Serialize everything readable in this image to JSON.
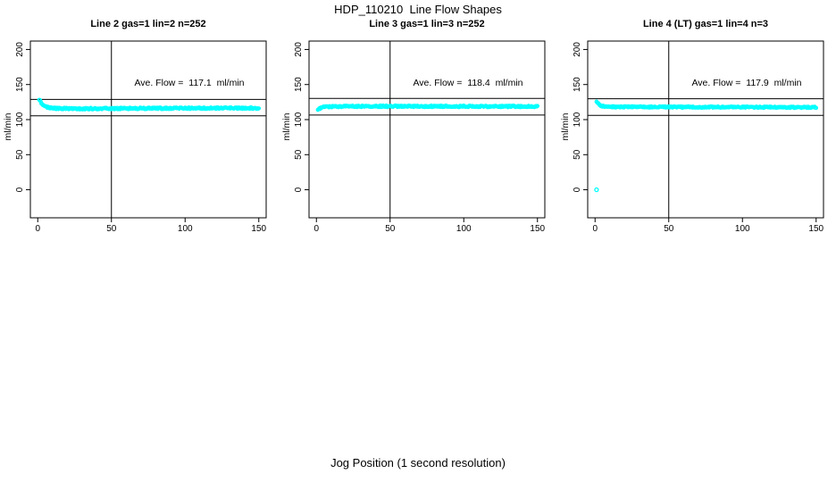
{
  "chart_data": {
    "type": "scatter",
    "title": "HDP_110210  Line Flow Shapes",
    "xlabel": "Jog Position (1 second resolution)",
    "ylabel": "ml/min",
    "xlim": [
      -5,
      155
    ],
    "ylim": [
      -40,
      212
    ],
    "xticks": [
      0,
      50,
      100,
      150
    ],
    "yticks": [
      0,
      50,
      100,
      150,
      200
    ],
    "grid": false,
    "legend": "none",
    "point_color": "#00FFFF",
    "line_color": "#000000",
    "background_color": "#ffffff",
    "panels": [
      {
        "title": "Line 2 gas=1 lin=2 n=252",
        "ave_flow_ml_min": 117.1,
        "annotation": "Ave. Flow =  117.1  ml/min",
        "n_points": 252,
        "vline_x": 50,
        "ref_lines_y": [
          128.8,
          105.4
        ],
        "x_range": [
          1,
          150
        ],
        "band_anchors": [
          [
            1,
            129
          ],
          [
            2,
            125
          ],
          [
            3,
            122
          ],
          [
            4,
            119.8
          ],
          [
            6,
            117.8
          ],
          [
            9,
            116.5
          ],
          [
            15,
            115.8
          ],
          [
            30,
            115.6
          ],
          [
            60,
            115.9
          ],
          [
            100,
            116.3
          ],
          [
            150,
            116.4
          ]
        ],
        "band_spread": 2.2,
        "seed": 1,
        "extra_points": []
      },
      {
        "title": "Line 3 gas=1 lin=3 n=252",
        "ave_flow_ml_min": 118.4,
        "annotation": "Ave. Flow =  118.4  ml/min",
        "n_points": 252,
        "vline_x": 50,
        "ref_lines_y": [
          130.2,
          106.6
        ],
        "x_range": [
          1,
          150
        ],
        "band_anchors": [
          [
            1,
            114
          ],
          [
            2,
            115.5
          ],
          [
            3,
            116.8
          ],
          [
            5,
            118
          ],
          [
            10,
            118.7
          ],
          [
            30,
            118.9
          ],
          [
            60,
            119
          ],
          [
            100,
            118.9
          ],
          [
            150,
            118.7
          ]
        ],
        "band_spread": 2.2,
        "seed": 2,
        "extra_points": []
      },
      {
        "title": "Line 4 (LT) gas=1 lin=4 n=3",
        "ave_flow_ml_min": 117.9,
        "annotation": "Ave. Flow =  117.9  ml/min",
        "n_points": 3,
        "vline_x": 50,
        "ref_lines_y": [
          129.7,
          106.1
        ],
        "x_range": [
          1,
          150
        ],
        "band_anchors": [
          [
            1,
            126
          ],
          [
            2,
            123
          ],
          [
            3,
            120.8
          ],
          [
            5,
            119.2
          ],
          [
            10,
            118.2
          ],
          [
            40,
            118
          ],
          [
            80,
            117.8
          ],
          [
            120,
            117.6
          ],
          [
            150,
            117.5
          ]
        ],
        "band_spread": 2.0,
        "seed": 3,
        "extra_points": [
          [
            1,
            0
          ]
        ]
      }
    ]
  }
}
